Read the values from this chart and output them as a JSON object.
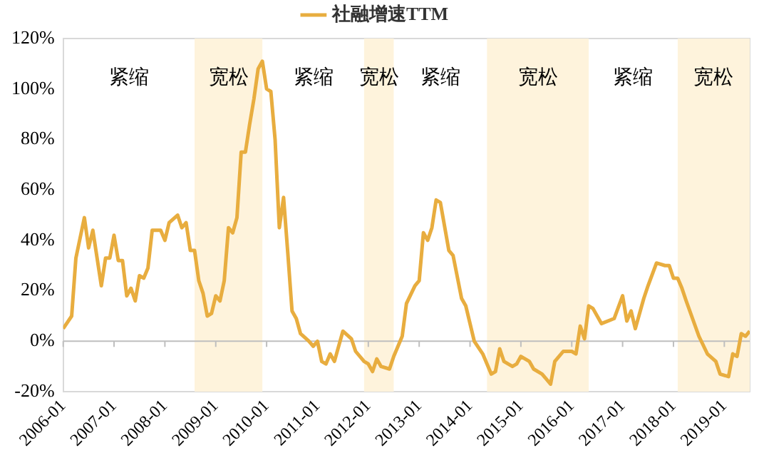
{
  "chart_data": {
    "type": "line",
    "legend": "top",
    "grid": false,
    "marker": "none",
    "line_style": "solid",
    "xlim": [
      "2006-01",
      "2019-07"
    ],
    "xticks": [
      "2006-01",
      "2007-01",
      "2008-01",
      "2009-01",
      "2010-01",
      "2011-01",
      "2012-01",
      "2013-01",
      "2014-01",
      "2015-01",
      "2016-01",
      "2017-01",
      "2018-01",
      "2019-01"
    ],
    "ylim": [
      -20,
      120
    ],
    "yticks": [
      {
        "value": -20,
        "label": "-20%"
      },
      {
        "value": 0,
        "label": "0%"
      },
      {
        "value": 20,
        "label": "20%"
      },
      {
        "value": 40,
        "label": "40%"
      },
      {
        "value": 60,
        "label": "60%"
      },
      {
        "value": 80,
        "label": "80%"
      },
      {
        "value": 100,
        "label": "100%"
      },
      {
        "value": 120,
        "label": "120%"
      }
    ],
    "bands": [
      {
        "axis": "x",
        "from": "2008-08",
        "to": "2009-12",
        "label": "宽松",
        "color": "#fef3dc"
      },
      {
        "axis": "x",
        "from": "2011-12",
        "to": "2012-07",
        "label": "宽松",
        "color": "#fef3dc"
      },
      {
        "axis": "x",
        "from": "2014-05",
        "to": "2016-05",
        "label": "宽松",
        "color": "#fef3dc"
      },
      {
        "axis": "x",
        "from": "2018-02",
        "to": "2019-07",
        "label": "宽松",
        "color": "#fef3dc"
      }
    ],
    "annotations": [
      "紧缩",
      "紧缩",
      "紧缩",
      "紧缩"
    ],
    "ref_lines": [
      {
        "axis": "y",
        "value": 0,
        "color": "#bfbfbf"
      }
    ],
    "series": [
      {
        "name": "社融增速TTM",
        "color": "#e8ad3f",
        "x": [
          "2006-01",
          "2006-03",
          "2006-04",
          "2006-06",
          "2006-07",
          "2006-08",
          "2006-10",
          "2006-11",
          "2006-12",
          "2007-01",
          "2007-02",
          "2007-03",
          "2007-04",
          "2007-05",
          "2007-06",
          "2007-07",
          "2007-08",
          "2007-09",
          "2007-10",
          "2007-12",
          "2008-01",
          "2008-02",
          "2008-04",
          "2008-05",
          "2008-06",
          "2008-07",
          "2008-08",
          "2008-09",
          "2008-10",
          "2008-11",
          "2008-12",
          "2009-01",
          "2009-02",
          "2009-03",
          "2009-04",
          "2009-05",
          "2009-06",
          "2009-07",
          "2009-08",
          "2009-09",
          "2009-10",
          "2009-11",
          "2009-12",
          "2010-01",
          "2010-02",
          "2010-03",
          "2010-04",
          "2010-05",
          "2010-06",
          "2010-07",
          "2010-08",
          "2010-09",
          "2010-11",
          "2010-12",
          "2011-01",
          "2011-02",
          "2011-03",
          "2011-04",
          "2011-05",
          "2011-06",
          "2011-07",
          "2011-09",
          "2011-10",
          "2011-12",
          "2012-01",
          "2012-02",
          "2012-03",
          "2012-04",
          "2012-06",
          "2012-07",
          "2012-09",
          "2012-10",
          "2012-12",
          "2013-01",
          "2013-02",
          "2013-03",
          "2013-04",
          "2013-05",
          "2013-06",
          "2013-08",
          "2013-09",
          "2013-11",
          "2013-12",
          "2014-02",
          "2014-04",
          "2014-06",
          "2014-07",
          "2014-08",
          "2014-09",
          "2014-11",
          "2014-12",
          "2015-01",
          "2015-03",
          "2015-04",
          "2015-06",
          "2015-08",
          "2015-09",
          "2015-11",
          "2016-01",
          "2016-02",
          "2016-03",
          "2016-04",
          "2016-05",
          "2016-06",
          "2016-08",
          "2016-11",
          "2017-01",
          "2017-02",
          "2017-03",
          "2017-04",
          "2017-06",
          "2017-07",
          "2017-09",
          "2017-11",
          "2017-12",
          "2018-01",
          "2018-02",
          "2018-03",
          "2018-04",
          "2018-07",
          "2018-09",
          "2018-11",
          "2018-12",
          "2019-02",
          "2019-03",
          "2019-04",
          "2019-05",
          "2019-06",
          "2019-07"
        ],
        "values": [
          5,
          10,
          33,
          49,
          37,
          44,
          22,
          33,
          33,
          42,
          32,
          32,
          18,
          21,
          16,
          26,
          25,
          29,
          44,
          44,
          40,
          47,
          50,
          45,
          47,
          36,
          36,
          24,
          19,
          10,
          11,
          18,
          16,
          24,
          45,
          43,
          49,
          75,
          75,
          86,
          96,
          108,
          111,
          100,
          99,
          80,
          45,
          57,
          35,
          12,
          9,
          3,
          0,
          -2,
          0,
          -8,
          -9,
          -5,
          -8,
          -2,
          4,
          1,
          -4,
          -8,
          -9,
          -12,
          -7,
          -10,
          -11,
          -6,
          2,
          15,
          22,
          24,
          43,
          40,
          45,
          56,
          55,
          36,
          34,
          17,
          14,
          0,
          -5,
          -13,
          -12,
          -3,
          -8,
          -10,
          -9,
          -6,
          -8,
          -11,
          -13,
          -17,
          -8,
          -4,
          -4,
          -5,
          6,
          1,
          14,
          13,
          7,
          9,
          18,
          8,
          12,
          5,
          17,
          22,
          31,
          30,
          30,
          25,
          25,
          21,
          16,
          2,
          -5,
          -8,
          -13,
          -14,
          -5,
          -6,
          3,
          2,
          4
        ]
      }
    ]
  }
}
